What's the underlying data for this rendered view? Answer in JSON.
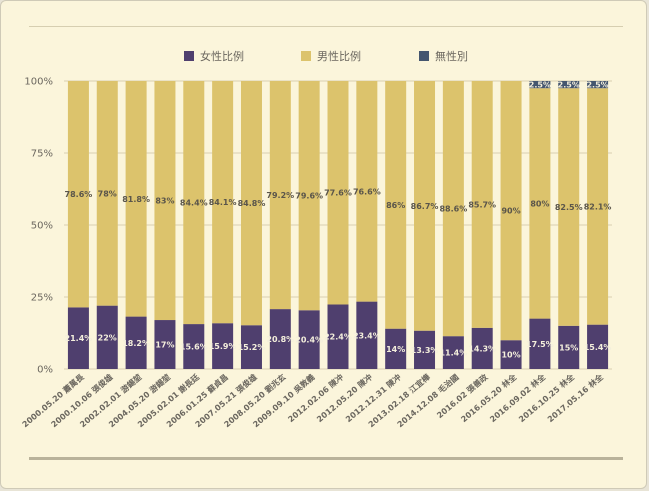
{
  "chart_data": {
    "type": "bar",
    "stacked": true,
    "title": "",
    "xlabel": "",
    "ylabel": "",
    "ylim": [
      0,
      100
    ],
    "yticks": [
      "0%",
      "25%",
      "50%",
      "75%",
      "100%"
    ],
    "legend_position": "top",
    "categories": [
      "2000.05.20 蕭萬長",
      "2000.10.06 張俊雄",
      "2002.02.01 游錫堃",
      "2004.05.20 游錫堃",
      "2005.02.01 謝長廷",
      "2006.01.25 蘇貞昌",
      "2007.05.21 張俊雄",
      "2008.05.20 劉兆玄",
      "2009.09.10 吳敦義",
      "2012.02.06 陳冲",
      "2012.05.20 陳冲",
      "2012.12.31 陳冲",
      "2013.02.18 江宜樺",
      "2014.12.08 毛治國",
      "2016.02 張善政",
      "2016.05.20 林全",
      "2016.09.02 林全",
      "2016.10.25 林全",
      "2017.05.16 林全"
    ],
    "series": [
      {
        "name": "女性比例",
        "color": "#4f3f6e",
        "values": [
          21.4,
          22,
          18.2,
          17,
          15.6,
          15.9,
          15.2,
          20.8,
          20.4,
          22.4,
          23.4,
          14,
          13.3,
          11.4,
          14.3,
          10,
          17.5,
          15,
          15.4
        ],
        "labels": [
          "21.4%",
          "22%",
          "18.2%",
          "17%",
          "15.6%",
          "15.9%",
          "15.2%",
          "20.8%",
          "20.4%",
          "22.4%",
          "23.4%",
          "14%",
          "13.3%",
          "11.4%",
          "14.3%",
          "10%",
          "17.5%",
          "15%",
          "15.4%"
        ]
      },
      {
        "name": "男性比例",
        "color": "#dcc36c",
        "values": [
          78.6,
          78,
          81.8,
          83,
          84.4,
          84.1,
          84.8,
          79.2,
          79.6,
          77.6,
          76.6,
          86,
          86.7,
          88.6,
          85.7,
          90,
          80,
          82.5,
          82.1
        ],
        "labels": [
          "78.6%",
          "78%",
          "81.8%",
          "83%",
          "84.4%",
          "84.1%",
          "84.8%",
          "79.2%",
          "79.6%",
          "77.6%",
          "76.6%",
          "86%",
          "86.7%",
          "88.6%",
          "85.7%",
          "90%",
          "80%",
          "82.5%",
          "82.1%"
        ]
      },
      {
        "name": "無性別",
        "color": "#45566f",
        "values": [
          0,
          0,
          0,
          0,
          0,
          0,
          0,
          0,
          0,
          0,
          0,
          0,
          0,
          0,
          0,
          0,
          2.5,
          2.5,
          2.5
        ],
        "labels": [
          "",
          "",
          "",
          "",
          "",
          "",
          "",
          "",
          "",
          "",
          "",
          "",
          "",
          "",
          "",
          "",
          "2.5%",
          "2.5%",
          "2.5%"
        ]
      }
    ]
  }
}
